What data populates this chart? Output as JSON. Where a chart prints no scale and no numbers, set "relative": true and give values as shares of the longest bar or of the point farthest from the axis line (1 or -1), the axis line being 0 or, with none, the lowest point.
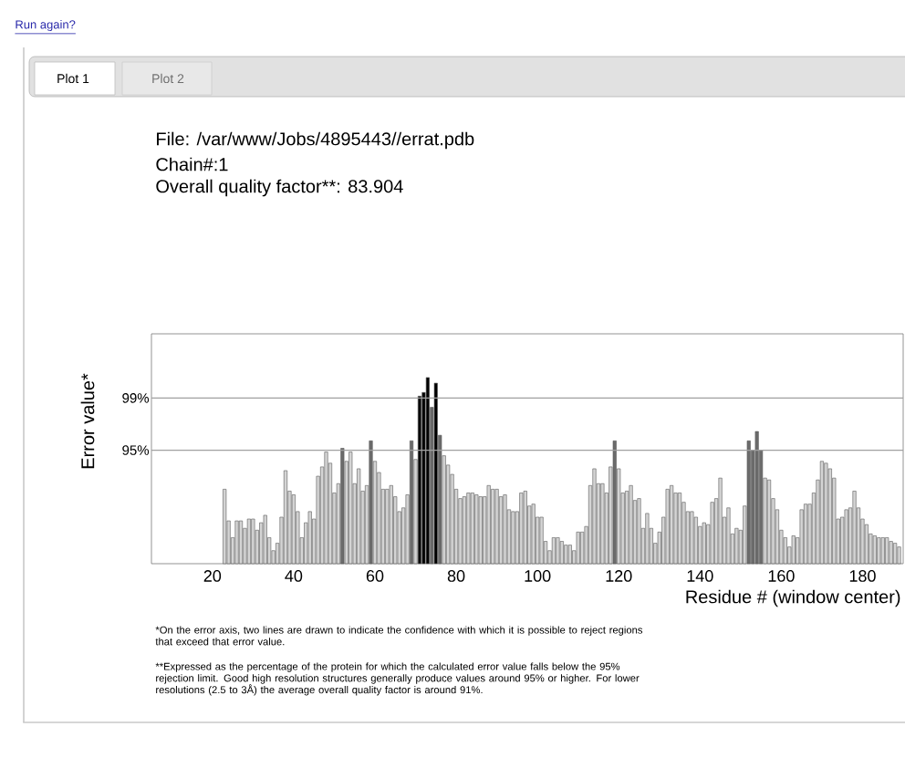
{
  "chart_data": {
    "type": "bar",
    "relative": true,
    "xlabel": "Residue # (window center)",
    "ylabel": "Error value*",
    "x": [
      23,
      24,
      25,
      26,
      27,
      28,
      29,
      30,
      31,
      32,
      33,
      34,
      35,
      36,
      37,
      38,
      39,
      40,
      41,
      42,
      43,
      44,
      45,
      46,
      47,
      48,
      49,
      50,
      51,
      52,
      53,
      54,
      55,
      56,
      57,
      58,
      59,
      60,
      61,
      62,
      63,
      64,
      65,
      66,
      67,
      68,
      69,
      70,
      71,
      72,
      73,
      74,
      75,
      76,
      77,
      78,
      79,
      80,
      81,
      82,
      83,
      84,
      85,
      86,
      87,
      88,
      89,
      90,
      91,
      92,
      93,
      94,
      95,
      96,
      97,
      98,
      99,
      100,
      101,
      102,
      103,
      104,
      105,
      106,
      107,
      108,
      109,
      110,
      111,
      112,
      113,
      114,
      115,
      116,
      117,
      118,
      119,
      120,
      121,
      122,
      123,
      124,
      125,
      126,
      127,
      128,
      129,
      130,
      131,
      132,
      133,
      134,
      135,
      136,
      137,
      138,
      139,
      140,
      141,
      142,
      143,
      144,
      145,
      146,
      147,
      148,
      149,
      150,
      151,
      152,
      153,
      154,
      155,
      156,
      157,
      158,
      159,
      160,
      161,
      162,
      163,
      164,
      165,
      166,
      167,
      168,
      169,
      170,
      171,
      172,
      173,
      174,
      175,
      176,
      177,
      178,
      179,
      180,
      181,
      182,
      183,
      184,
      185,
      186,
      187,
      188,
      189
    ],
    "values": [
      0.4,
      0.23,
      0.14,
      0.23,
      0.23,
      0.19,
      0.24,
      0.24,
      0.18,
      0.22,
      0.26,
      0.14,
      0.07,
      0.11,
      0.25,
      0.5,
      0.39,
      0.37,
      0.28,
      0.14,
      0.22,
      0.28,
      0.24,
      0.47,
      0.52,
      0.6,
      0.54,
      0.38,
      0.43,
      0.62,
      0.55,
      0.6,
      0.43,
      0.51,
      0.39,
      0.42,
      0.66,
      0.55,
      0.49,
      0.4,
      0.4,
      0.42,
      0.36,
      0.28,
      0.3,
      0.37,
      0.66,
      0.56,
      0.9,
      0.92,
      1.0,
      0.84,
      0.97,
      0.69,
      0.58,
      0.53,
      0.48,
      0.4,
      0.35,
      0.36,
      0.38,
      0.38,
      0.37,
      0.36,
      0.36,
      0.42,
      0.4,
      0.4,
      0.36,
      0.37,
      0.29,
      0.28,
      0.28,
      0.38,
      0.39,
      0.31,
      0.32,
      0.25,
      0.25,
      0.12,
      0.07,
      0.14,
      0.14,
      0.12,
      0.1,
      0.1,
      0.07,
      0.17,
      0.17,
      0.2,
      0.42,
      0.51,
      0.43,
      0.43,
      0.38,
      0.52,
      0.66,
      0.51,
      0.38,
      0.39,
      0.42,
      0.34,
      0.35,
      0.19,
      0.27,
      0.19,
      0.11,
      0.17,
      0.25,
      0.4,
      0.42,
      0.38,
      0.38,
      0.33,
      0.28,
      0.28,
      0.25,
      0.2,
      0.22,
      0.21,
      0.33,
      0.35,
      0.46,
      0.25,
      0.3,
      0.16,
      0.19,
      0.18,
      0.31,
      0.66,
      0.61,
      0.71,
      0.61,
      0.46,
      0.45,
      0.35,
      0.29,
      0.18,
      0.14,
      0.09,
      0.15,
      0.14,
      0.29,
      0.32,
      0.32,
      0.38,
      0.45,
      0.55,
      0.54,
      0.51,
      0.46,
      0.24,
      0.25,
      0.29,
      0.3,
      0.39,
      0.3,
      0.24,
      0.21,
      0.16,
      0.15,
      0.14,
      0.14,
      0.14,
      0.12,
      0.11,
      0.09
    ],
    "colors": [
      "#d4d4d4",
      "#d4d4d4",
      "#d4d4d4",
      "#d4d4d4",
      "#d4d4d4",
      "#d4d4d4",
      "#d4d4d4",
      "#d4d4d4",
      "#d4d4d4",
      "#d4d4d4",
      "#d4d4d4",
      "#d4d4d4",
      "#d4d4d4",
      "#d4d4d4",
      "#d4d4d4",
      "#d4d4d4",
      "#d4d4d4",
      "#d4d4d4",
      "#d4d4d4",
      "#d4d4d4",
      "#d4d4d4",
      "#d4d4d4",
      "#d4d4d4",
      "#d4d4d4",
      "#d4d4d4",
      "#d4d4d4",
      "#d4d4d4",
      "#d4d4d4",
      "#d4d4d4",
      "#6b6b6b",
      "#d4d4d4",
      "#d4d4d4",
      "#d4d4d4",
      "#d4d4d4",
      "#d4d4d4",
      "#d4d4d4",
      "#6b6b6b",
      "#d4d4d4",
      "#d4d4d4",
      "#d4d4d4",
      "#d4d4d4",
      "#d4d4d4",
      "#d4d4d4",
      "#d4d4d4",
      "#d4d4d4",
      "#d4d4d4",
      "#6b6b6b",
      "#d4d4d4",
      "#000000",
      "#000000",
      "#000000",
      "#6b6b6b",
      "#000000",
      "#6b6b6b",
      "#d4d4d4",
      "#d4d4d4",
      "#d4d4d4",
      "#d4d4d4",
      "#d4d4d4",
      "#d4d4d4",
      "#d4d4d4",
      "#d4d4d4",
      "#d4d4d4",
      "#d4d4d4",
      "#d4d4d4",
      "#d4d4d4",
      "#d4d4d4",
      "#d4d4d4",
      "#d4d4d4",
      "#d4d4d4",
      "#d4d4d4",
      "#d4d4d4",
      "#d4d4d4",
      "#d4d4d4",
      "#d4d4d4",
      "#d4d4d4",
      "#d4d4d4",
      "#d4d4d4",
      "#d4d4d4",
      "#d4d4d4",
      "#d4d4d4",
      "#d4d4d4",
      "#d4d4d4",
      "#d4d4d4",
      "#d4d4d4",
      "#d4d4d4",
      "#d4d4d4",
      "#d4d4d4",
      "#d4d4d4",
      "#d4d4d4",
      "#d4d4d4",
      "#d4d4d4",
      "#d4d4d4",
      "#d4d4d4",
      "#d4d4d4",
      "#d4d4d4",
      "#6b6b6b",
      "#d4d4d4",
      "#d4d4d4",
      "#d4d4d4",
      "#d4d4d4",
      "#d4d4d4",
      "#d4d4d4",
      "#d4d4d4",
      "#d4d4d4",
      "#d4d4d4",
      "#d4d4d4",
      "#d4d4d4",
      "#d4d4d4",
      "#d4d4d4",
      "#d4d4d4",
      "#d4d4d4",
      "#d4d4d4",
      "#d4d4d4",
      "#d4d4d4",
      "#d4d4d4",
      "#d4d4d4",
      "#d4d4d4",
      "#d4d4d4",
      "#d4d4d4",
      "#d4d4d4",
      "#d4d4d4",
      "#d4d4d4",
      "#d4d4d4",
      "#d4d4d4",
      "#d4d4d4",
      "#d4d4d4",
      "#d4d4d4",
      "#d4d4d4",
      "#6b6b6b",
      "#6b6b6b",
      "#6b6b6b",
      "#6b6b6b",
      "#d4d4d4",
      "#d4d4d4",
      "#d4d4d4",
      "#d4d4d4",
      "#d4d4d4",
      "#d4d4d4",
      "#d4d4d4",
      "#d4d4d4",
      "#d4d4d4",
      "#d4d4d4",
      "#d4d4d4",
      "#d4d4d4",
      "#d4d4d4",
      "#d4d4d4",
      "#d4d4d4",
      "#d4d4d4",
      "#d4d4d4",
      "#d4d4d4",
      "#d4d4d4",
      "#d4d4d4",
      "#d4d4d4",
      "#d4d4d4",
      "#d4d4d4",
      "#d4d4d4",
      "#d4d4d4",
      "#d4d4d4",
      "#d4d4d4",
      "#d4d4d4",
      "#d4d4d4",
      "#d4d4d4",
      "#d4d4d4",
      "#d4d4d4",
      "#d4d4d4",
      "#d4d4d4"
    ],
    "xlim": [
      5,
      190
    ],
    "xticks": [
      20,
      40,
      60,
      80,
      100,
      120,
      140,
      160,
      180
    ],
    "tick_labels": "x",
    "ref_lines": [
      {
        "axis": "y",
        "value": 0.89,
        "color": "#a0a0a0"
      },
      {
        "axis": "y",
        "value": 0.61,
        "color": "#a0a0a0"
      }
    ],
    "annotations": [
      "Run again?",
      "Plot 1",
      "Plot 2",
      "File: /var/www/Jobs/4895443//errat.pdb",
      "Chain#:1",
      "Overall quality factor**: 83.904",
      "*On the error axis, two lines are drawn to indicate the confidence with which it is possible to reject regions that exceed that error value.",
      "**Expressed as the percentage of the protein for which the calculated error value falls below the 95% rejection limit.  Good high resolution structures generally produce values around 95% or higher.  For lower resolutions (2.5 to 3Å) the average overall quality factor is around 91%.",
      "99%",
      "95%"
    ]
  }
}
